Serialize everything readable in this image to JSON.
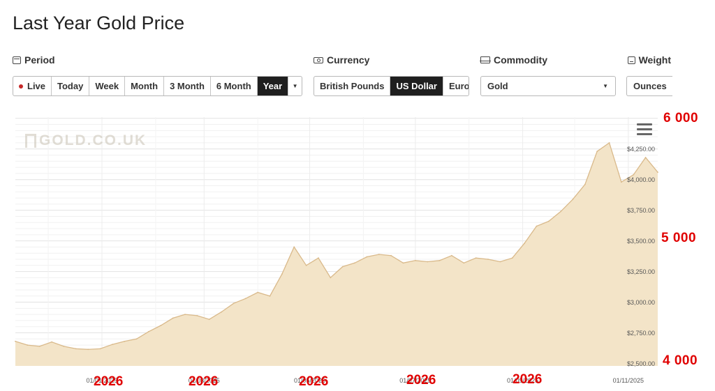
{
  "page": {
    "title": "Last Year Gold Price"
  },
  "filters": {
    "period": {
      "label": "Period",
      "icon": "calendar-icon",
      "options": [
        "Live",
        "Today",
        "Week",
        "Month",
        "3 Month",
        "6 Month",
        "Year"
      ],
      "active": "Year",
      "live_dot_color": "#c62828"
    },
    "currency": {
      "label": "Currency",
      "icon": "cash-icon",
      "options": [
        "British Pounds",
        "US Dollar",
        "Euro"
      ],
      "active": "US Dollar"
    },
    "commodity": {
      "label": "Commodity",
      "icon": "bullion-icon",
      "selected": "Gold"
    },
    "weight": {
      "label": "Weight",
      "icon": "scale-icon",
      "selected": "Ounces"
    }
  },
  "branding": {
    "logo_text": "GOLD.CO.UK"
  },
  "overlay": {
    "right_labels": [
      "6 000",
      "5 000",
      "4 000"
    ],
    "year_labels": [
      "2026",
      "2026",
      "2026",
      "2026",
      "2026"
    ],
    "color": "#e00000"
  },
  "chart_data": {
    "type": "area",
    "title": "",
    "xlabel": "",
    "ylabel": "",
    "ylim": [
      2480,
      4510
    ],
    "grid": true,
    "fill_color": "#f3e4c8",
    "line_color": "#d9b98a",
    "y_ticks": [
      "$2,500.00",
      "$2,750.00",
      "$3,000.00",
      "$3,250.00",
      "$3,500.00",
      "$3,750.00",
      "$4,000.00",
      "$4,250.00"
    ],
    "y_tick_values": [
      2500,
      2750,
      3000,
      3250,
      3500,
      3750,
      4000,
      4250
    ],
    "x_ticks": [
      "01/01/2025",
      "01/03/2025",
      "01/05/2025",
      "01/07/2025",
      "01/09/2025",
      "01/11/2025"
    ],
    "x": [
      "2024-11-12",
      "2024-11-19",
      "2024-11-26",
      "2024-12-03",
      "2024-12-10",
      "2024-12-17",
      "2024-12-24",
      "2024-12-31",
      "2025-01-07",
      "2025-01-14",
      "2025-01-21",
      "2025-01-28",
      "2025-02-04",
      "2025-02-11",
      "2025-02-18",
      "2025-02-25",
      "2025-03-04",
      "2025-03-11",
      "2025-03-18",
      "2025-03-25",
      "2025-04-01",
      "2025-04-08",
      "2025-04-15",
      "2025-04-22",
      "2025-04-29",
      "2025-05-06",
      "2025-05-13",
      "2025-05-20",
      "2025-05-27",
      "2025-06-03",
      "2025-06-10",
      "2025-06-17",
      "2025-06-24",
      "2025-07-01",
      "2025-07-08",
      "2025-07-15",
      "2025-07-22",
      "2025-07-29",
      "2025-08-05",
      "2025-08-12",
      "2025-08-19",
      "2025-08-26",
      "2025-09-02",
      "2025-09-09",
      "2025-09-16",
      "2025-09-23",
      "2025-09-30",
      "2025-10-07",
      "2025-10-14",
      "2025-10-21",
      "2025-10-28",
      "2025-11-04",
      "2025-11-11",
      "2025-11-18"
    ],
    "series": [
      {
        "values": [
          2680,
          2650,
          2640,
          2675,
          2640,
          2620,
          2615,
          2620,
          2655,
          2680,
          2700,
          2760,
          2810,
          2870,
          2900,
          2890,
          2860,
          2920,
          2990,
          3030,
          3080,
          3050,
          3230,
          3450,
          3300,
          3360,
          3200,
          3290,
          3320,
          3370,
          3390,
          3380,
          3320,
          3340,
          3330,
          3340,
          3380,
          3320,
          3360,
          3350,
          3330,
          3360,
          3480,
          3620,
          3660,
          3740,
          3840,
          3960,
          4230,
          4300,
          3980,
          4040,
          4180,
          4060
        ]
      }
    ]
  }
}
